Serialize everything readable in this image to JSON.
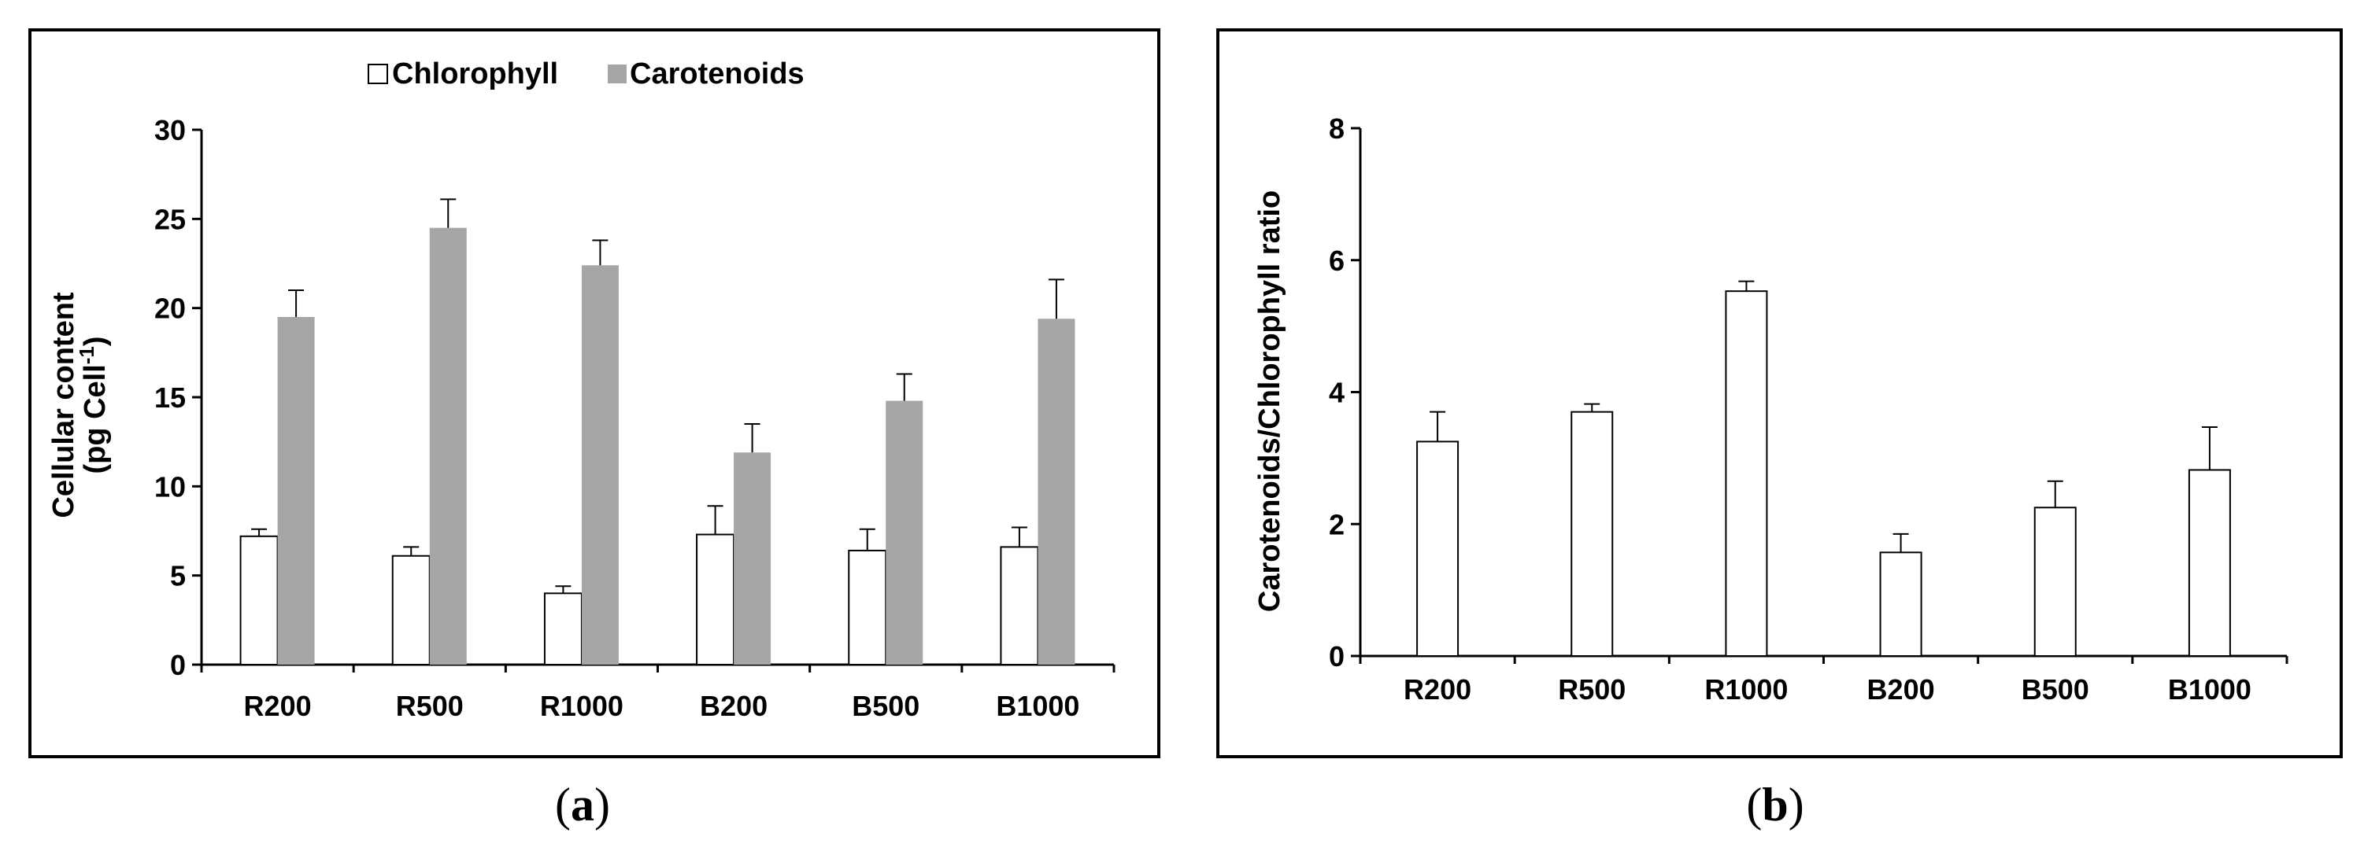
{
  "colors": {
    "chlorophyll": "#ffffff",
    "carotenoids": "#a6a6a6",
    "stroke": "#000000"
  },
  "panel_a": {
    "open": "(",
    "letter": "a",
    "close": ")"
  },
  "panel_b": {
    "open": "(",
    "letter": "b",
    "close": ")"
  },
  "chart_data": [
    {
      "type": "bar",
      "categories": [
        "R200",
        "R500",
        "R1000",
        "B200",
        "B500",
        "B1000"
      ],
      "series": [
        {
          "name": "Chlorophyll",
          "values": [
            7.2,
            6.1,
            4.0,
            7.3,
            6.4,
            6.6
          ],
          "errors": [
            0.4,
            0.5,
            0.4,
            1.6,
            1.2,
            1.1
          ]
        },
        {
          "name": "Carotenoids",
          "values": [
            19.5,
            24.5,
            22.4,
            11.9,
            14.8,
            19.4
          ],
          "errors": [
            1.5,
            1.6,
            1.4,
            1.6,
            1.5,
            2.2
          ]
        }
      ],
      "title": "",
      "xlabel": "",
      "ylabel_line1": "Cellular content",
      "ylabel_line2_pre": "(pg Cell",
      "ylabel_line2_sup": "-1",
      "ylabel_line2_post": ")",
      "ylim": [
        0,
        30
      ],
      "yticks": [
        "0",
        "5",
        "10",
        "15",
        "20",
        "25",
        "30"
      ],
      "legend": "top-center"
    },
    {
      "type": "bar",
      "categories": [
        "R200",
        "R500",
        "R1000",
        "B200",
        "B500",
        "B1000"
      ],
      "series": [
        {
          "name": "Carotenoids/Chlorophyll ratio",
          "values": [
            3.25,
            3.7,
            5.53,
            1.57,
            2.25,
            2.82
          ],
          "errors": [
            0.45,
            0.12,
            0.15,
            0.28,
            0.4,
            0.65
          ]
        }
      ],
      "title": "",
      "xlabel": "",
      "ylabel": "Carotenoids/Chlorophyll ratio",
      "ylim": [
        0,
        8
      ],
      "yticks": [
        "0",
        "2",
        "4",
        "6",
        "8"
      ]
    }
  ]
}
